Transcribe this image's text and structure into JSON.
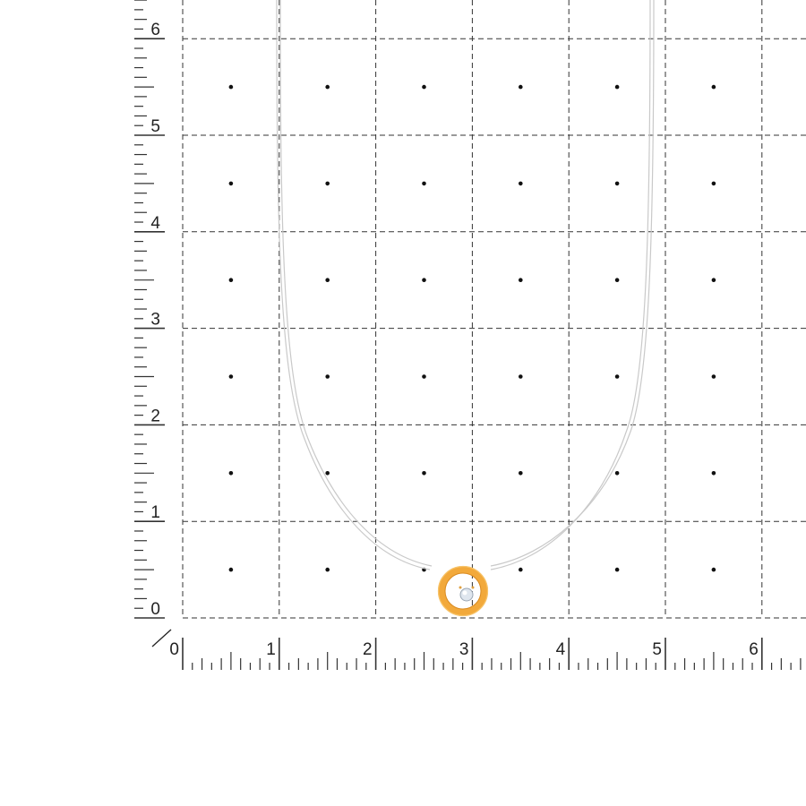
{
  "grid": {
    "x_labels": [
      "0",
      "1",
      "2",
      "3",
      "4",
      "5",
      "6"
    ],
    "y_labels": [
      "0",
      "1",
      "2",
      "3",
      "4",
      "5",
      "6"
    ],
    "unit": "cm",
    "minor_ticks_per_unit": 10
  },
  "product": {
    "type": "necklace with round pendant",
    "chain_color": "#c8c8c8",
    "pendant_color": "#f2a93b",
    "stone_color": "#dfe6ee"
  }
}
